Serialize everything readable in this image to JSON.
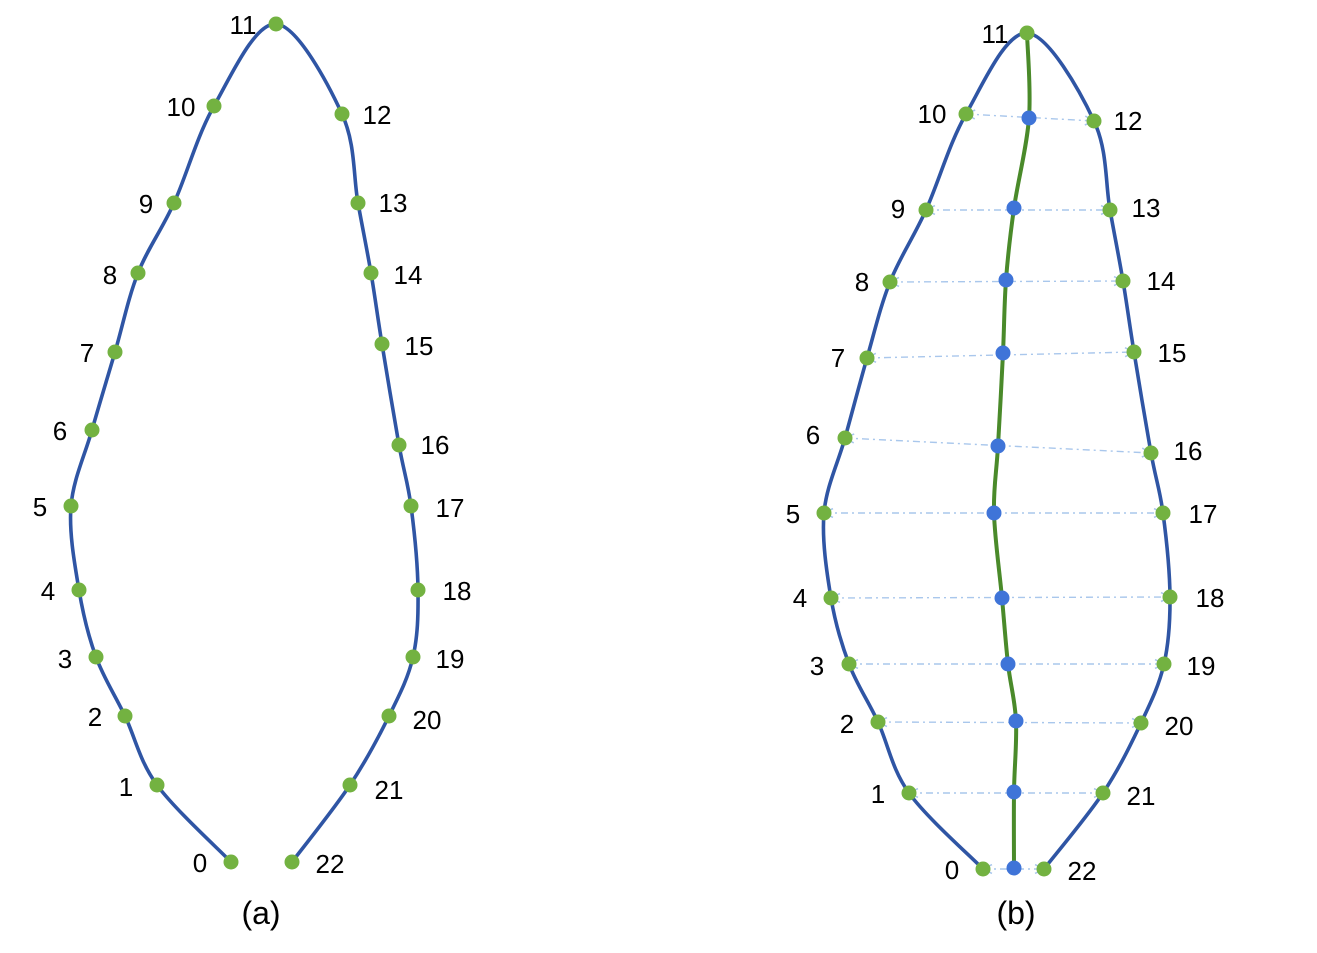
{
  "colors": {
    "outline": "#2f55a4",
    "midrib": "#4a8a2a",
    "landmark": "#73b241",
    "midpoint": "#3f74d8",
    "connector": "#a9c7ec",
    "text": "#000000"
  },
  "panels": [
    {
      "id": "a",
      "caption": "(a)",
      "points": [
        {
          "label": "0"
        },
        {
          "label": "1"
        },
        {
          "label": "2"
        },
        {
          "label": "3"
        },
        {
          "label": "4"
        },
        {
          "label": "5"
        },
        {
          "label": "6"
        },
        {
          "label": "7"
        },
        {
          "label": "8"
        },
        {
          "label": "9"
        },
        {
          "label": "10"
        },
        {
          "label": "11"
        },
        {
          "label": "12"
        },
        {
          "label": "13"
        },
        {
          "label": "14"
        },
        {
          "label": "15"
        },
        {
          "label": "16"
        },
        {
          "label": "17"
        },
        {
          "label": "18"
        },
        {
          "label": "19"
        },
        {
          "label": "20"
        },
        {
          "label": "21"
        },
        {
          "label": "22"
        }
      ],
      "has_midrib": false
    },
    {
      "id": "b",
      "caption": "(b)",
      "points": [
        {
          "label": "0"
        },
        {
          "label": "1"
        },
        {
          "label": "2"
        },
        {
          "label": "3"
        },
        {
          "label": "4"
        },
        {
          "label": "5"
        },
        {
          "label": "6"
        },
        {
          "label": "7"
        },
        {
          "label": "8"
        },
        {
          "label": "9"
        },
        {
          "label": "10"
        },
        {
          "label": "11"
        },
        {
          "label": "12"
        },
        {
          "label": "13"
        },
        {
          "label": "14"
        },
        {
          "label": "15"
        },
        {
          "label": "16"
        },
        {
          "label": "17"
        },
        {
          "label": "18"
        },
        {
          "label": "19"
        },
        {
          "label": "20"
        },
        {
          "label": "21"
        },
        {
          "label": "22"
        }
      ],
      "has_midrib": true,
      "midpoint_count": 11
    }
  ]
}
